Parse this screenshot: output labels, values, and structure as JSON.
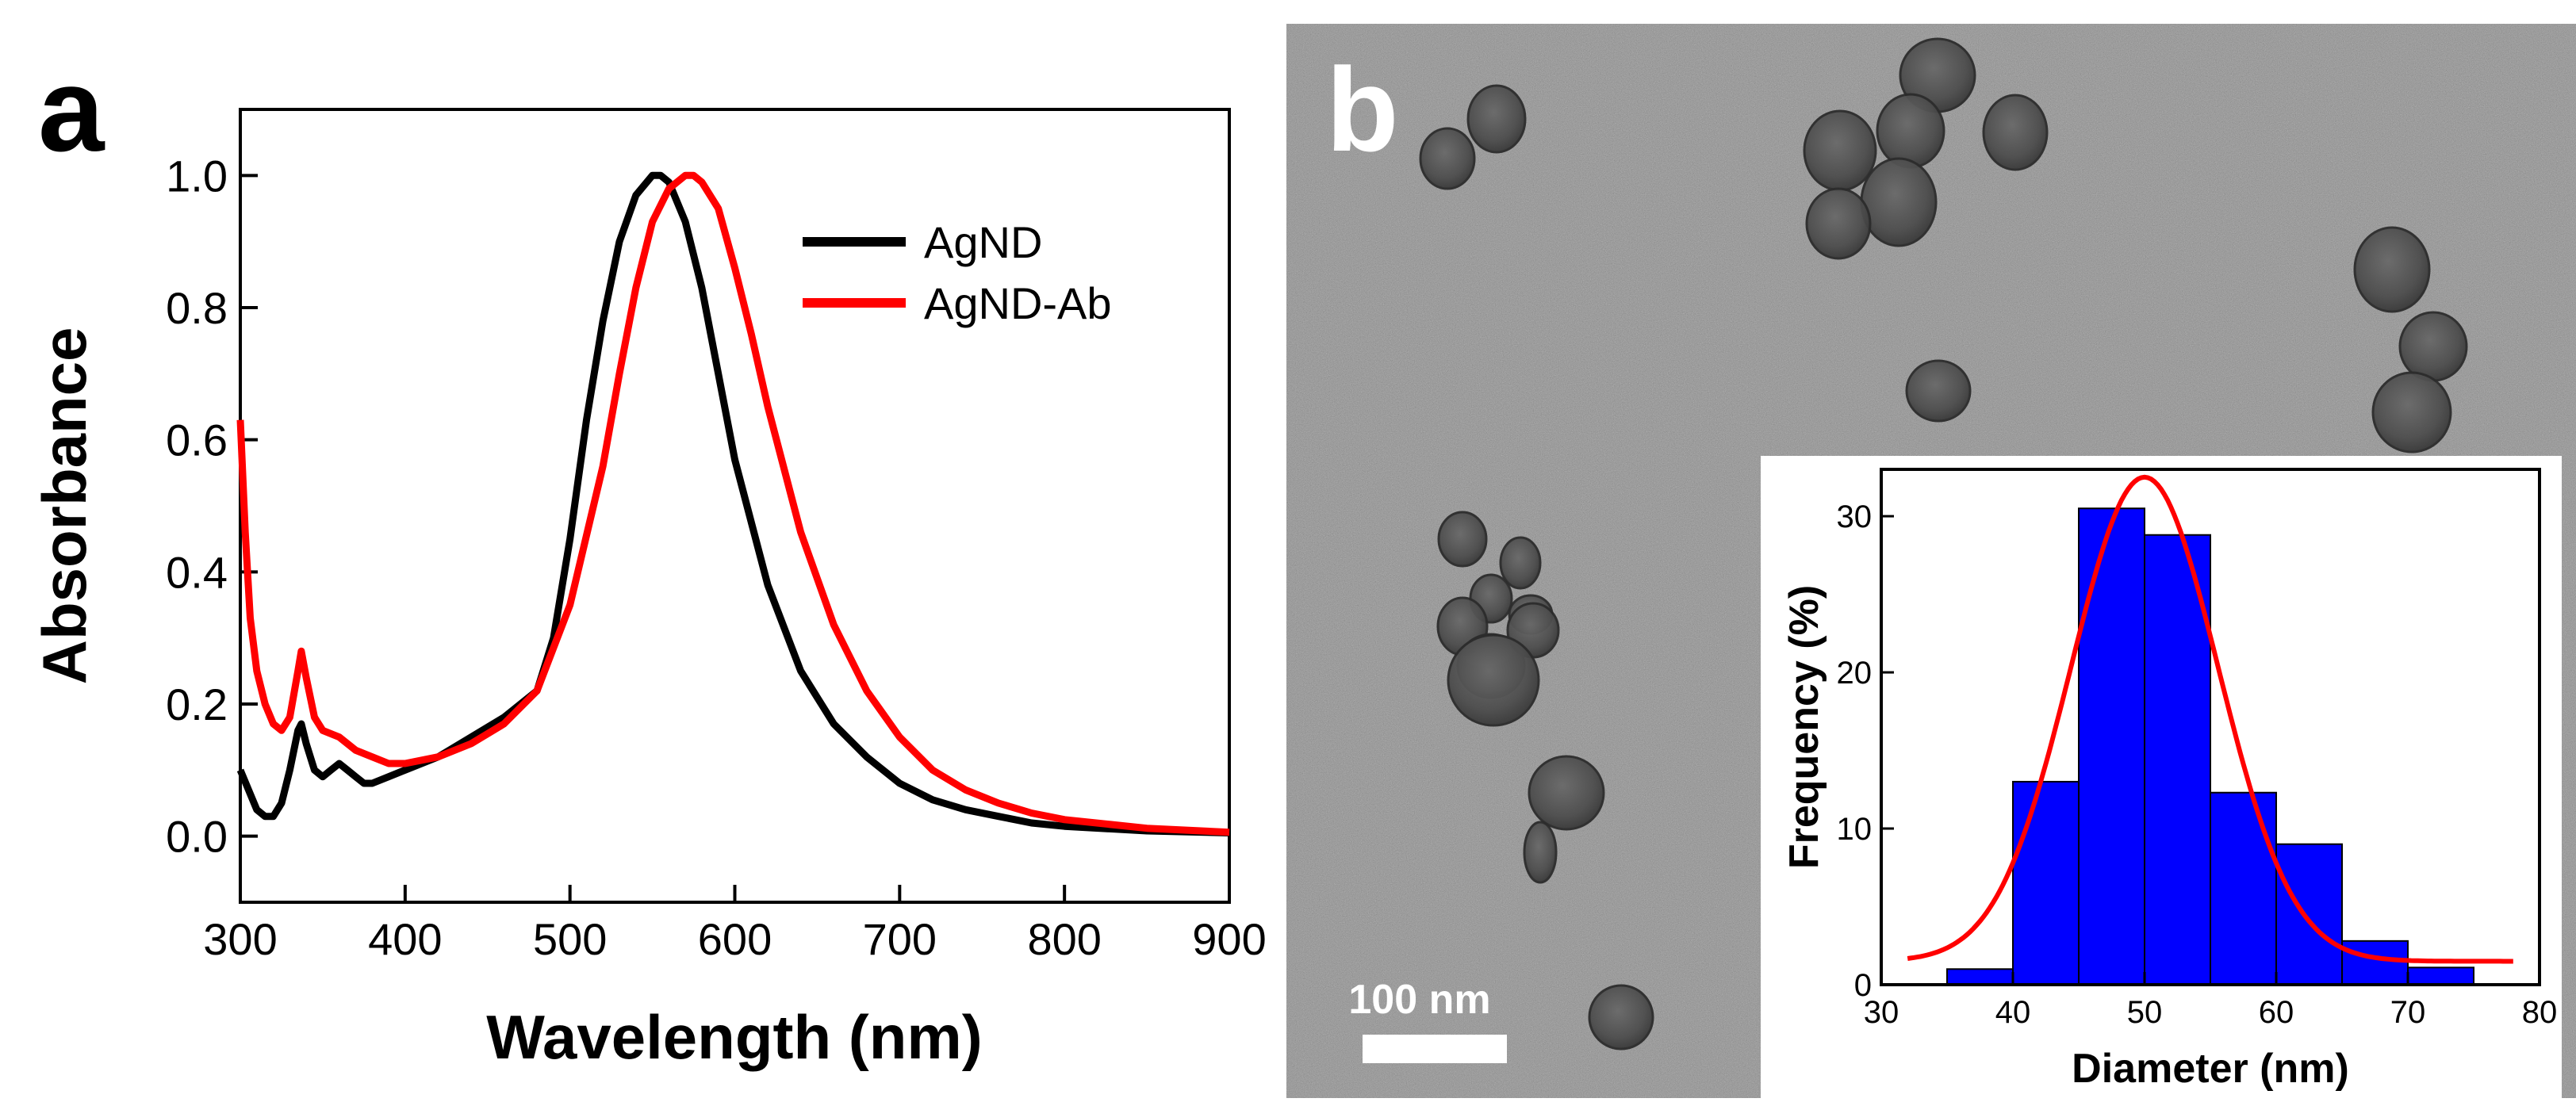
{
  "panels": {
    "a": {
      "label": "a"
    },
    "b": {
      "label": "b",
      "scale_bar_label": "100 nm"
    }
  },
  "colors": {
    "agnd": "#000000",
    "agnd_ab": "#ff0000",
    "histogram_fill": "#0000ff",
    "fit_curve": "#ff0000",
    "tem_background": "#8f8f8f"
  },
  "chart_data": [
    {
      "panel": "a",
      "type": "line",
      "xlabel": "Wavelength (nm)",
      "ylabel": "Absorbance",
      "xlim": [
        300,
        900
      ],
      "ylim": [
        -0.1,
        1.1
      ],
      "xticks": [
        "300",
        "400",
        "500",
        "600",
        "700",
        "800",
        "900"
      ],
      "yticks": [
        "0.0",
        "0.2",
        "0.4",
        "0.6",
        "0.8",
        "1.0"
      ],
      "legend_position": "top-right",
      "series": [
        {
          "name": "AgND",
          "color": "#000000",
          "x": [
            300,
            305,
            310,
            315,
            320,
            325,
            330,
            335,
            337,
            340,
            345,
            350,
            355,
            360,
            365,
            370,
            375,
            380,
            390,
            400,
            420,
            440,
            460,
            480,
            490,
            500,
            510,
            520,
            530,
            540,
            550,
            555,
            560,
            570,
            580,
            590,
            600,
            620,
            640,
            660,
            680,
            700,
            720,
            740,
            760,
            780,
            800,
            850,
            900
          ],
          "y": [
            0.1,
            0.07,
            0.04,
            0.03,
            0.03,
            0.05,
            0.1,
            0.16,
            0.17,
            0.14,
            0.1,
            0.09,
            0.1,
            0.11,
            0.1,
            0.09,
            0.08,
            0.08,
            0.09,
            0.1,
            0.12,
            0.15,
            0.18,
            0.22,
            0.3,
            0.45,
            0.63,
            0.78,
            0.9,
            0.97,
            1.0,
            1.0,
            0.99,
            0.93,
            0.83,
            0.7,
            0.57,
            0.38,
            0.25,
            0.17,
            0.12,
            0.08,
            0.055,
            0.04,
            0.03,
            0.02,
            0.015,
            0.008,
            0.005
          ]
        },
        {
          "name": "AgND-Ab",
          "color": "#ff0000",
          "x": [
            300,
            303,
            306,
            310,
            315,
            320,
            325,
            330,
            335,
            337,
            340,
            345,
            350,
            360,
            370,
            380,
            390,
            400,
            420,
            440,
            460,
            480,
            500,
            520,
            530,
            540,
            550,
            560,
            570,
            575,
            580,
            590,
            600,
            610,
            620,
            640,
            660,
            680,
            700,
            720,
            740,
            760,
            780,
            800,
            850,
            900
          ],
          "y": [
            0.63,
            0.46,
            0.33,
            0.25,
            0.2,
            0.17,
            0.16,
            0.18,
            0.25,
            0.28,
            0.24,
            0.18,
            0.16,
            0.15,
            0.13,
            0.12,
            0.11,
            0.11,
            0.12,
            0.14,
            0.17,
            0.22,
            0.35,
            0.56,
            0.7,
            0.83,
            0.93,
            0.98,
            1.0,
            1.0,
            0.99,
            0.95,
            0.86,
            0.76,
            0.65,
            0.46,
            0.32,
            0.22,
            0.15,
            0.1,
            0.07,
            0.05,
            0.035,
            0.025,
            0.012,
            0.006
          ]
        }
      ]
    },
    {
      "panel": "b-inset",
      "type": "bar",
      "xlabel": "Diameter (nm)",
      "ylabel": "Frequency (%)",
      "xlim": [
        30,
        80
      ],
      "ylim": [
        0,
        33
      ],
      "xticks": [
        "30",
        "40",
        "50",
        "60",
        "70",
        "80"
      ],
      "yticks": [
        "0",
        "10",
        "20",
        "30"
      ],
      "bins": [
        {
          "start": 35,
          "end": 40,
          "value": 1.0
        },
        {
          "start": 40,
          "end": 45,
          "value": 13.0
        },
        {
          "start": 45,
          "end": 50,
          "value": 30.5
        },
        {
          "start": 50,
          "end": 55,
          "value": 28.8
        },
        {
          "start": 55,
          "end": 60,
          "value": 12.3
        },
        {
          "start": 60,
          "end": 65,
          "value": 9.0
        },
        {
          "start": 65,
          "end": 70,
          "value": 2.8
        },
        {
          "start": 70,
          "end": 75,
          "value": 1.1
        }
      ],
      "fit": {
        "type": "gaussian",
        "center": 50.0,
        "sigma": 5.6,
        "peak": 31.0,
        "baseline": 1.5,
        "x_range": [
          32,
          78
        ]
      }
    }
  ]
}
